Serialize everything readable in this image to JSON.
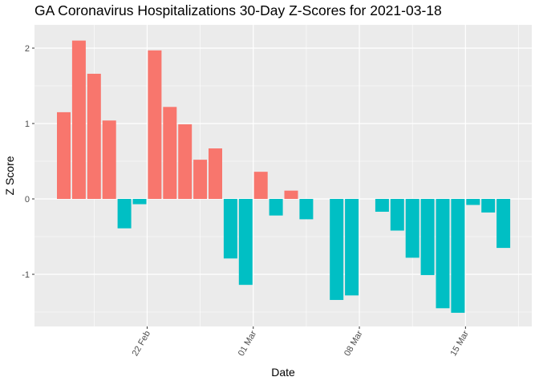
{
  "chart_data": {
    "type": "bar",
    "title": "GA Coronavirus Hospitalizations 30-Day Z-Scores for 2021-03-18",
    "xlabel": "Date",
    "ylabel": "Z Score",
    "ylim": [
      -1.6,
      2.3
    ],
    "yticks": [
      -1,
      0,
      1,
      2
    ],
    "ytick_labels": [
      "-1",
      "0",
      "1",
      "2"
    ],
    "xticks": [
      {
        "label": "22 Feb",
        "index": 5.5
      },
      {
        "label": "01 Mar",
        "index": 12.5
      },
      {
        "label": "08 Mar",
        "index": 19.5
      },
      {
        "label": "15 Mar",
        "index": 26.5
      }
    ],
    "colors": {
      "positive": "#F8766D",
      "negative": "#00BFC4",
      "panel": "#EBEBEB",
      "grid": "#FFFFFF"
    },
    "values": [
      1.15,
      2.1,
      1.66,
      1.04,
      -0.39,
      -0.07,
      1.97,
      1.22,
      0.99,
      0.52,
      0.67,
      -0.79,
      -1.14,
      0.36,
      -0.22,
      0.11,
      -0.27,
      null,
      -1.34,
      -1.28,
      null,
      -0.17,
      -0.42,
      -0.78,
      -1.01,
      -1.45,
      -1.51,
      -0.08,
      -0.18,
      -0.65
    ]
  }
}
